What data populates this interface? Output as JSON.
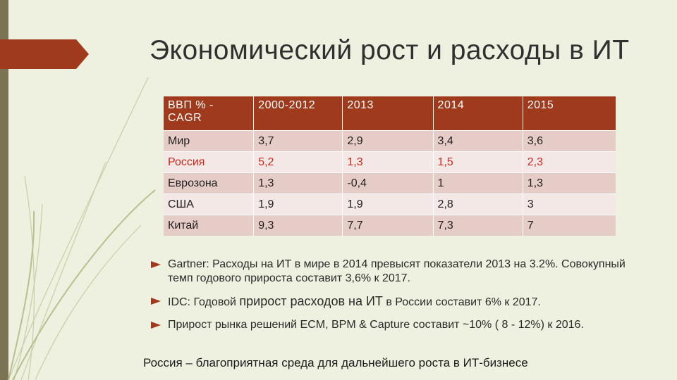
{
  "title": "Экономический рост и расходы в ИТ",
  "table": {
    "headers": [
      "ВВП % - CAGR",
      "2000-2012",
      "2013",
      "2014",
      "2015"
    ],
    "rows": [
      [
        "Мир",
        "3,7",
        "2,9",
        "3,4",
        "3,6"
      ],
      [
        "Россия",
        "5,2",
        "1,3",
        "1,5",
        "2,3"
      ],
      [
        "Еврозона",
        "1,3",
        "-0,4",
        "1",
        "1,3"
      ],
      [
        "США",
        "1,9",
        "1,9",
        "2,8",
        "3"
      ],
      [
        "Китай",
        "9,3",
        "7,7",
        "7,3",
        "7"
      ]
    ]
  },
  "bullets": {
    "b1": "Gartner: Расходы на ИТ в мире в 2014 превысят показатели 2013 на 3.2%. Совокупный темп годового прироста составит 3,6% к 2017.",
    "b2_part1": "IDC: Годовой ",
    "b2_part2": "прирост расходов на ИТ",
    "b2_part3": " в России составит 6% к 2017.",
    "b3": "Прирост рынка решений ECM, BPM & Capture составит ~10% ( 8 - 12%) к 2016."
  },
  "conclusion": "Россия – благоприятная среда для дальнейшего роста в ИТ-бизнесе",
  "colors": {
    "accent": "#a03a1c",
    "highlight_text": "#c8281e",
    "band_dark": "#e6ccc6",
    "band_light": "#f3e8e5",
    "background": "#eef0e0"
  }
}
